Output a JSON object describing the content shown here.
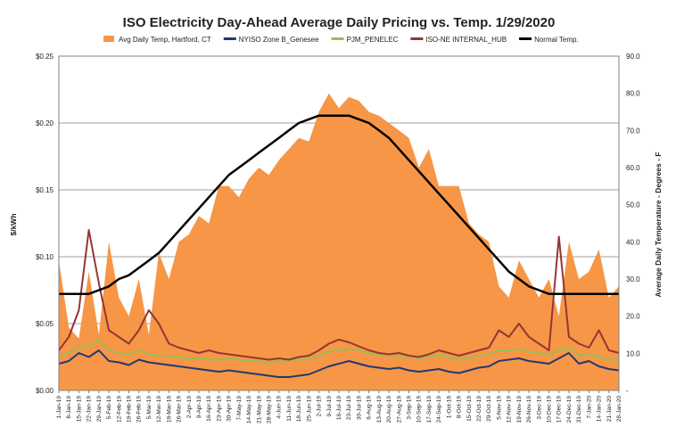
{
  "chart_data": {
    "type": "line",
    "title": "ISO Electricity Day-Ahead Average Daily Pricing vs. Temp. 1/29/2020",
    "ylabel_left": "$/kWh",
    "ylabel_right": "Average Daily Temperature - Degrees - F",
    "ylim_left": [
      0,
      0.25
    ],
    "ylim_right": [
      0,
      90
    ],
    "yticks_left": [
      "$0.00",
      "$0.05",
      "$0.10",
      "$0.15",
      "$0.20",
      "$0.25"
    ],
    "yticks_right": [
      "-",
      "10.0",
      "20.0",
      "30.0",
      "40.0",
      "50.0",
      "60.0",
      "70.0",
      "80.0",
      "90.0"
    ],
    "grid": true,
    "legend_position": "top",
    "x": [
      "1-Jan-19",
      "8-Jan-19",
      "15-Jan-19",
      "22-Jan-19",
      "29-Jan-19",
      "5-Feb-19",
      "12-Feb-19",
      "19-Feb-19",
      "26-Feb-19",
      "5-Mar-19",
      "12-Mar-19",
      "19-Mar-19",
      "26-Mar-19",
      "2-Apr-19",
      "9-Apr-19",
      "16-Apr-19",
      "23-Apr-19",
      "30-Apr-19",
      "7-May-19",
      "14-May-19",
      "21-May-19",
      "28-May-19",
      "4-Jun-19",
      "11-Jun-19",
      "18-Jun-19",
      "25-Jun-19",
      "2-Jul-19",
      "9-Jul-19",
      "16-Jul-19",
      "23-Jul-19",
      "30-Jul-19",
      "6-Aug-19",
      "13-Aug-19",
      "20-Aug-19",
      "27-Aug-19",
      "3-Sep-19",
      "10-Sep-19",
      "17-Sep-19",
      "24-Sep-19",
      "1-Oct-19",
      "8-Oct-19",
      "15-Oct-19",
      "22-Oct-19",
      "29-Oct-19",
      "5-Nov-19",
      "12-Nov-19",
      "19-Nov-19",
      "26-Nov-19",
      "3-Dec-19",
      "10-Dec-19",
      "17-Dec-19",
      "24-Dec-19",
      "31-Dec-19",
      "7-Jan-20",
      "14-Jan-20",
      "21-Jan-20",
      "28-Jan-20"
    ],
    "series": [
      {
        "name": "Avg Daily Temp, Hartford, CT",
        "axis": "right",
        "style": "area",
        "color": "#F79646",
        "values": [
          35,
          17,
          14,
          32,
          15,
          40,
          25,
          20,
          30,
          15,
          37,
          30,
          40,
          42,
          47,
          45,
          55,
          55,
          52,
          57,
          60,
          58,
          62,
          65,
          68,
          67,
          75,
          80,
          76,
          79,
          78,
          75,
          74,
          72,
          70,
          68,
          60,
          65,
          55,
          55,
          55,
          45,
          42,
          40,
          28,
          25,
          35,
          30,
          25,
          30,
          20,
          40,
          30,
          32,
          38,
          25,
          28
        ]
      },
      {
        "name": "NYISO Zone B_Genesee",
        "axis": "left",
        "style": "line",
        "color": "#1F3A73",
        "values": [
          0.02,
          0.022,
          0.028,
          0.025,
          0.03,
          0.022,
          0.021,
          0.019,
          0.023,
          0.021,
          0.02,
          0.019,
          0.018,
          0.017,
          0.016,
          0.015,
          0.014,
          0.015,
          0.014,
          0.013,
          0.012,
          0.011,
          0.01,
          0.01,
          0.011,
          0.012,
          0.015,
          0.018,
          0.02,
          0.022,
          0.02,
          0.018,
          0.017,
          0.016,
          0.017,
          0.015,
          0.014,
          0.015,
          0.016,
          0.014,
          0.013,
          0.015,
          0.017,
          0.018,
          0.022,
          0.023,
          0.024,
          0.022,
          0.021,
          0.02,
          0.024,
          0.028,
          0.02,
          0.022,
          0.018,
          0.016,
          0.015
        ]
      },
      {
        "name": "PJM_PENELEC",
        "axis": "left",
        "style": "line",
        "color": "#9BBB59",
        "values": [
          0.026,
          0.028,
          0.033,
          0.032,
          0.038,
          0.03,
          0.028,
          0.027,
          0.03,
          0.027,
          0.026,
          0.026,
          0.025,
          0.024,
          0.024,
          0.023,
          0.023,
          0.024,
          0.023,
          0.022,
          0.022,
          0.021,
          0.022,
          0.022,
          0.023,
          0.024,
          0.026,
          0.029,
          0.03,
          0.031,
          0.03,
          0.028,
          0.027,
          0.026,
          0.026,
          0.025,
          0.024,
          0.025,
          0.027,
          0.025,
          0.023,
          0.024,
          0.026,
          0.027,
          0.03,
          0.03,
          0.031,
          0.029,
          0.028,
          0.027,
          0.03,
          0.032,
          0.026,
          0.027,
          0.025,
          0.024,
          0.022
        ]
      },
      {
        "name": "ISO-NE INTERNAL_HUB",
        "axis": "left",
        "style": "line",
        "color": "#943634",
        "values": [
          0.03,
          0.04,
          0.06,
          0.12,
          0.08,
          0.045,
          0.04,
          0.035,
          0.045,
          0.06,
          0.05,
          0.035,
          0.032,
          0.03,
          0.028,
          0.03,
          0.028,
          0.027,
          0.026,
          0.025,
          0.024,
          0.023,
          0.024,
          0.023,
          0.025,
          0.026,
          0.03,
          0.035,
          0.038,
          0.036,
          0.033,
          0.03,
          0.028,
          0.027,
          0.028,
          0.026,
          0.025,
          0.027,
          0.03,
          0.028,
          0.026,
          0.028,
          0.03,
          0.032,
          0.045,
          0.04,
          0.05,
          0.04,
          0.035,
          0.03,
          0.115,
          0.04,
          0.035,
          0.032,
          0.045,
          0.03,
          0.028
        ]
      },
      {
        "name": "Normal Temp.",
        "axis": "right",
        "style": "line",
        "color": "#000000",
        "values": [
          26,
          26,
          26,
          26,
          27,
          28,
          30,
          31,
          33,
          35,
          37,
          40,
          43,
          46,
          49,
          52,
          55,
          58,
          60,
          62,
          64,
          66,
          68,
          70,
          72,
          73,
          74,
          74,
          74,
          74,
          73,
          72,
          70,
          68,
          65,
          62,
          59,
          56,
          53,
          50,
          47,
          44,
          41,
          38,
          35,
          32,
          30,
          28,
          27,
          26,
          26,
          26,
          26,
          26,
          26,
          26,
          26
        ]
      }
    ]
  }
}
